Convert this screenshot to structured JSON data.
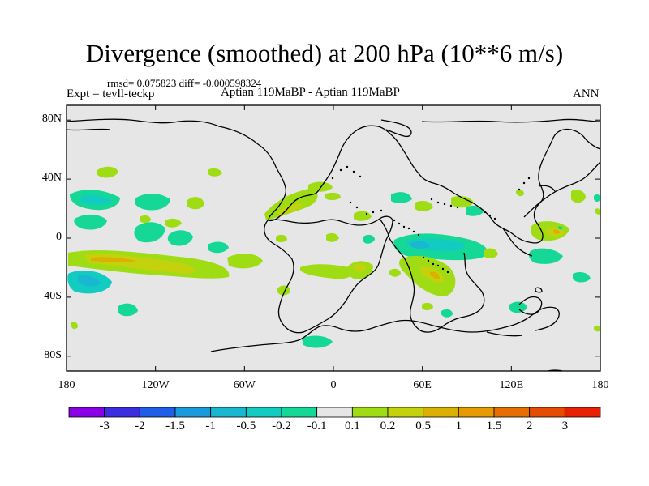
{
  "title": "Divergence (smoothed) at 200 hPa (10**6 m/s)",
  "stats": "rmsd= 0.075823 diff= -0.000598324",
  "expt": "Expt = tevll-teckp",
  "subtitle": "Aptian   119MaBP - Aptian   119MaBP",
  "season": "ANN",
  "map": {
    "lon_range": [
      -180,
      180
    ],
    "lat_range": [
      -90,
      90
    ],
    "lat_ticks": [
      {
        "label": "80N",
        "lat": 80
      },
      {
        "label": "40N",
        "lat": 40
      },
      {
        "label": "0",
        "lat": 0
      },
      {
        "label": "40S",
        "lat": -40
      },
      {
        "label": "80S",
        "lat": -80
      }
    ],
    "lon_ticks": [
      {
        "label": "180",
        "lon": -180
      },
      {
        "label": "120W",
        "lon": -120
      },
      {
        "label": "60W",
        "lon": -60
      },
      {
        "label": "0",
        "lon": 0
      },
      {
        "label": "60E",
        "lon": 60
      },
      {
        "label": "120E",
        "lon": 120
      },
      {
        "label": "180",
        "lon": 180
      }
    ],
    "background_color": "#e6e6e6"
  },
  "colorbar": {
    "colors": [
      "#8a00e6",
      "#3a2ee0",
      "#1e5ee8",
      "#1a9adc",
      "#18b8d0",
      "#12ccc2",
      "#16d896",
      "#e6e6e6",
      "#a0dc14",
      "#c4d20e",
      "#dcb000",
      "#e69a00",
      "#e66e00",
      "#e64c00",
      "#e62000"
    ],
    "labels": [
      "-3",
      "-2",
      "-1.5",
      "-1",
      "-0.5",
      "-0.2",
      "-0.1",
      "0.1",
      "0.2",
      "0.5",
      "1",
      "1.5",
      "2",
      "3"
    ]
  }
}
